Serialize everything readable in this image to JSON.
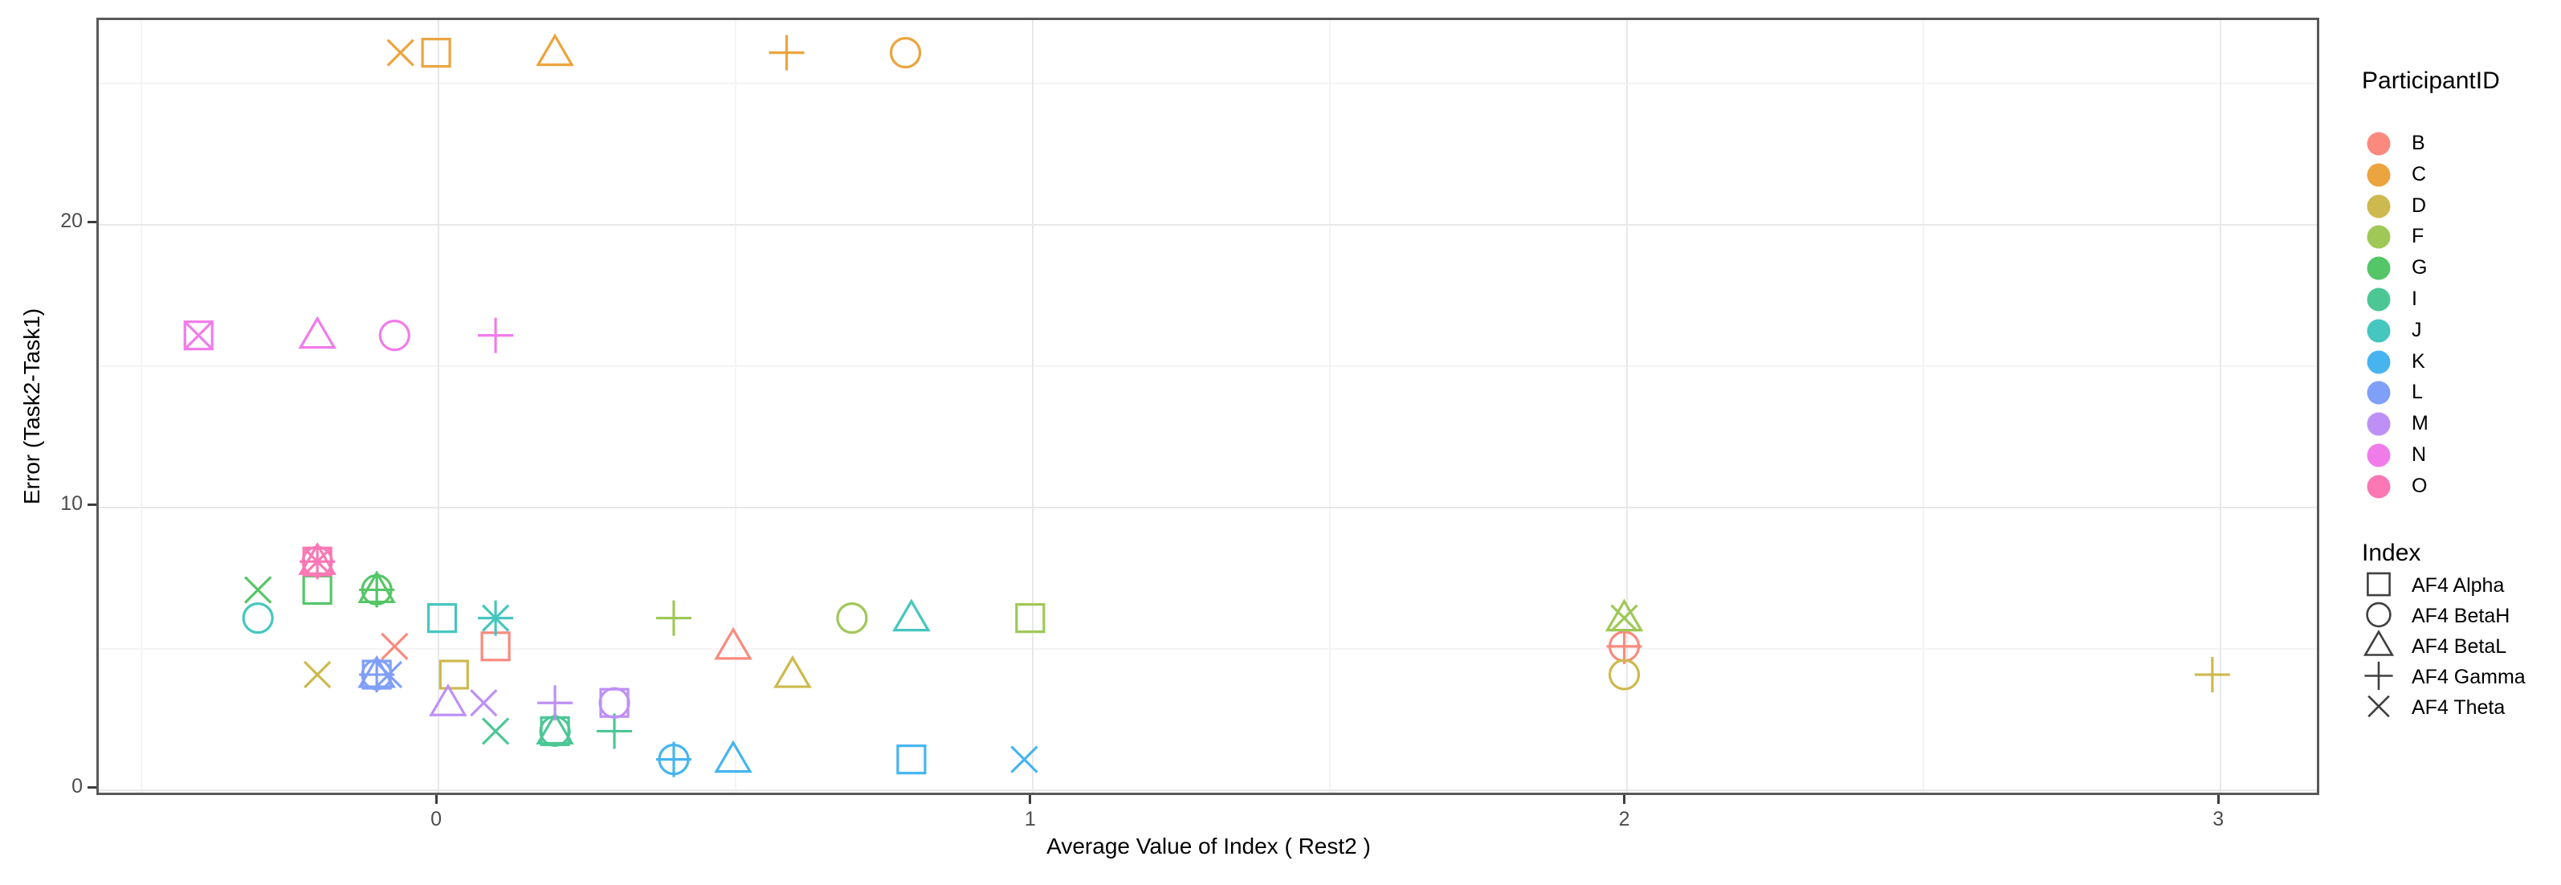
{
  "chart_data": {
    "type": "scatter",
    "title": "",
    "xlabel": "Average Value of Index ( Rest2 )",
    "ylabel": "Error (Task2-Task1)",
    "xlim": [
      -0.572,
      3.17
    ],
    "ylim": [
      -0.26,
      27.24
    ],
    "x_major_ticks": [
      0,
      1,
      2,
      3
    ],
    "x_minor_gridlines": [
      -0.5,
      0.5,
      1.5,
      2.5
    ],
    "y_major_ticks": [
      0,
      10,
      20
    ],
    "y_minor_gridlines": [
      5,
      15,
      25
    ],
    "grid": "major+minor",
    "legend_position": "right",
    "legends": {
      "color": {
        "title": "ParticipantID",
        "entries": [
          {
            "label": "B",
            "color": "#FA8A7E"
          },
          {
            "label": "C",
            "color": "#ECA43E"
          },
          {
            "label": "D",
            "color": "#CDB94D"
          },
          {
            "label": "F",
            "color": "#9FC857"
          },
          {
            "label": "G",
            "color": "#55C667"
          },
          {
            "label": "I",
            "color": "#4BC795"
          },
          {
            "label": "J",
            "color": "#45C6BF"
          },
          {
            "label": "K",
            "color": "#47B4F0"
          },
          {
            "label": "L",
            "color": "#7F9FF9"
          },
          {
            "label": "M",
            "color": "#BE90F6"
          },
          {
            "label": "N",
            "color": "#F07CEA"
          },
          {
            "label": "O",
            "color": "#FB78B4"
          }
        ]
      },
      "shape": {
        "title": "Index",
        "entries": [
          {
            "label": "AF4 Alpha",
            "shape": "square"
          },
          {
            "label": "AF4 BetaH",
            "shape": "circle"
          },
          {
            "label": "AF4 BetaL",
            "shape": "triangle"
          },
          {
            "label": "AF4 Gamma",
            "shape": "plus"
          },
          {
            "label": "AF4 Theta",
            "shape": "x"
          }
        ]
      }
    },
    "series": [
      {
        "name": "B",
        "color": "#FA8A7E",
        "points": [
          {
            "index": "AF4 Theta",
            "shape": "x",
            "x": -0.07,
            "y": 5
          },
          {
            "index": "AF4 Alpha",
            "shape": "square",
            "x": 0.1,
            "y": 5
          },
          {
            "index": "AF4 BetaL",
            "shape": "triangle",
            "x": 0.5,
            "y": 5
          },
          {
            "index": "AF4 BetaH",
            "shape": "circle",
            "x": 2.0,
            "y": 5
          },
          {
            "index": "AF4 Gamma",
            "shape": "plus",
            "x": 2.0,
            "y": 5
          }
        ]
      },
      {
        "name": "C",
        "color": "#ECA43E",
        "points": [
          {
            "index": "AF4 Theta",
            "shape": "x",
            "x": -0.06,
            "y": 26
          },
          {
            "index": "AF4 Alpha",
            "shape": "square",
            "x": 0.0,
            "y": 26
          },
          {
            "index": "AF4 BetaL",
            "shape": "triangle",
            "x": 0.2,
            "y": 26
          },
          {
            "index": "AF4 Gamma",
            "shape": "plus",
            "x": 0.59,
            "y": 26
          },
          {
            "index": "AF4 BetaH",
            "shape": "circle",
            "x": 0.79,
            "y": 26
          }
        ]
      },
      {
        "name": "D",
        "color": "#CDB94D",
        "points": [
          {
            "index": "AF4 Theta",
            "shape": "x",
            "x": -0.2,
            "y": 4
          },
          {
            "index": "AF4 Alpha",
            "shape": "square",
            "x": 0.03,
            "y": 4
          },
          {
            "index": "AF4 BetaL",
            "shape": "triangle",
            "x": 0.6,
            "y": 4
          },
          {
            "index": "AF4 BetaH",
            "shape": "circle",
            "x": 2.0,
            "y": 4
          },
          {
            "index": "AF4 Gamma",
            "shape": "plus",
            "x": 2.99,
            "y": 4
          }
        ]
      },
      {
        "name": "F",
        "color": "#9FC857",
        "points": [
          {
            "index": "AF4 Gamma",
            "shape": "plus",
            "x": 0.4,
            "y": 6
          },
          {
            "index": "AF4 BetaH",
            "shape": "circle",
            "x": 0.7,
            "y": 6
          },
          {
            "index": "AF4 Alpha",
            "shape": "square",
            "x": 1.0,
            "y": 6
          },
          {
            "index": "AF4 BetaL",
            "shape": "triangle",
            "x": 2.0,
            "y": 6
          },
          {
            "index": "AF4 Theta",
            "shape": "x",
            "x": 2.0,
            "y": 6
          }
        ]
      },
      {
        "name": "G",
        "color": "#55C667",
        "points": [
          {
            "index": "AF4 Theta",
            "shape": "x",
            "x": -0.3,
            "y": 7
          },
          {
            "index": "AF4 Alpha",
            "shape": "square",
            "x": -0.2,
            "y": 7
          },
          {
            "index": "AF4 BetaH",
            "shape": "circle",
            "x": -0.1,
            "y": 7
          },
          {
            "index": "AF4 BetaL",
            "shape": "triangle",
            "x": -0.1,
            "y": 7
          },
          {
            "index": "AF4 Gamma",
            "shape": "plus",
            "x": -0.1,
            "y": 7
          }
        ]
      },
      {
        "name": "I",
        "color": "#4BC795",
        "points": [
          {
            "index": "AF4 Theta",
            "shape": "x",
            "x": 0.1,
            "y": 2
          },
          {
            "index": "AF4 Alpha",
            "shape": "square",
            "x": 0.2,
            "y": 2
          },
          {
            "index": "AF4 BetaH",
            "shape": "circle",
            "x": 0.2,
            "y": 2
          },
          {
            "index": "AF4 BetaL",
            "shape": "triangle",
            "x": 0.2,
            "y": 2
          },
          {
            "index": "AF4 Gamma",
            "shape": "plus",
            "x": 0.3,
            "y": 2
          }
        ]
      },
      {
        "name": "J",
        "color": "#45C6BF",
        "points": [
          {
            "index": "AF4 BetaH",
            "shape": "circle",
            "x": -0.3,
            "y": 6
          },
          {
            "index": "AF4 Alpha",
            "shape": "square",
            "x": 0.01,
            "y": 6
          },
          {
            "index": "AF4 Theta",
            "shape": "x",
            "x": 0.1,
            "y": 6
          },
          {
            "index": "AF4 Gamma",
            "shape": "plus",
            "x": 0.1,
            "y": 6
          },
          {
            "index": "AF4 BetaL",
            "shape": "triangle",
            "x": 0.8,
            "y": 6
          }
        ]
      },
      {
        "name": "K",
        "color": "#47B4F0",
        "points": [
          {
            "index": "AF4 BetaH",
            "shape": "circle",
            "x": 0.4,
            "y": 1
          },
          {
            "index": "AF4 Gamma",
            "shape": "plus",
            "x": 0.4,
            "y": 1
          },
          {
            "index": "AF4 BetaL",
            "shape": "triangle",
            "x": 0.5,
            "y": 1
          },
          {
            "index": "AF4 Alpha",
            "shape": "square",
            "x": 0.8,
            "y": 1
          },
          {
            "index": "AF4 Theta",
            "shape": "x",
            "x": 0.99,
            "y": 1
          }
        ]
      },
      {
        "name": "L",
        "color": "#7F9FF9",
        "points": [
          {
            "index": "AF4 Alpha",
            "shape": "square",
            "x": -0.1,
            "y": 4
          },
          {
            "index": "AF4 BetaH",
            "shape": "circle",
            "x": -0.1,
            "y": 4
          },
          {
            "index": "AF4 BetaL",
            "shape": "triangle",
            "x": -0.1,
            "y": 4
          },
          {
            "index": "AF4 Gamma",
            "shape": "plus",
            "x": -0.1,
            "y": 4
          },
          {
            "index": "AF4 Theta",
            "shape": "x",
            "x": -0.08,
            "y": 4
          }
        ]
      },
      {
        "name": "M",
        "color": "#BE90F6",
        "points": [
          {
            "index": "AF4 BetaL",
            "shape": "triangle",
            "x": 0.02,
            "y": 3
          },
          {
            "index": "AF4 Theta",
            "shape": "x",
            "x": 0.08,
            "y": 3
          },
          {
            "index": "AF4 Gamma",
            "shape": "plus",
            "x": 0.2,
            "y": 3
          },
          {
            "index": "AF4 Alpha",
            "shape": "square",
            "x": 0.3,
            "y": 3
          },
          {
            "index": "AF4 BetaH",
            "shape": "circle",
            "x": 0.3,
            "y": 3
          }
        ]
      },
      {
        "name": "N",
        "color": "#F07CEA",
        "points": [
          {
            "index": "AF4 Theta",
            "shape": "x",
            "x": -0.4,
            "y": 16
          },
          {
            "index": "AF4 Alpha",
            "shape": "square",
            "x": -0.4,
            "y": 16
          },
          {
            "index": "AF4 BetaL",
            "shape": "triangle",
            "x": -0.2,
            "y": 16
          },
          {
            "index": "AF4 BetaH",
            "shape": "circle",
            "x": -0.07,
            "y": 16
          },
          {
            "index": "AF4 Gamma",
            "shape": "plus",
            "x": 0.1,
            "y": 16
          }
        ]
      },
      {
        "name": "O",
        "color": "#FB78B4",
        "points": [
          {
            "index": "AF4 Alpha",
            "shape": "square",
            "x": -0.2,
            "y": 8
          },
          {
            "index": "AF4 BetaH",
            "shape": "circle",
            "x": -0.2,
            "y": 8
          },
          {
            "index": "AF4 BetaL",
            "shape": "triangle",
            "x": -0.2,
            "y": 8
          },
          {
            "index": "AF4 Gamma",
            "shape": "plus",
            "x": -0.2,
            "y": 8
          },
          {
            "index": "AF4 Theta",
            "shape": "x",
            "x": -0.2,
            "y": 8
          }
        ]
      }
    ]
  }
}
